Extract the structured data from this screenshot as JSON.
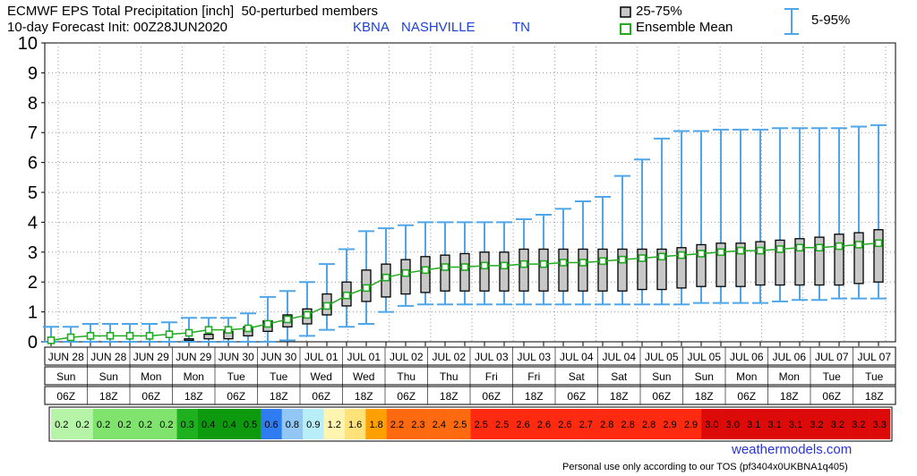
{
  "header": {
    "title_line1": "ECMWF EPS Total Precipitation [inch]  50-perturbed members",
    "title_line2": "10-day Forecast Init: 00Z28JUN2020",
    "station_code": "KBNA",
    "station_name": "NASHVILLE",
    "station_state": "TN"
  },
  "legend": {
    "box_label": "25-75%",
    "mean_label": "Ensemble Mean",
    "whisker_label": "5-95%"
  },
  "colors": {
    "box_fill": "#c8c8c8",
    "whisker": "#4fa6e8",
    "mean_line": "#22aa22",
    "mean_marker": "#ffffff"
  },
  "footer": {
    "site": "weathermodels.com",
    "note": "Personal use only according to our TOS (pf3404x0UKBNA1q405)"
  },
  "chart_data": {
    "type": "box",
    "ylim": [
      0,
      10
    ],
    "yticks": [
      "0",
      "1",
      "2",
      "3",
      "4",
      "5",
      "6",
      "7",
      "8",
      "9",
      "10"
    ],
    "date_labels": [
      "JUN 28",
      "JUN 28",
      "JUN 29",
      "JUN 29",
      "JUN 30",
      "JUN 30",
      "JUL 01",
      "JUL 01",
      "JUL 02",
      "JUL 02",
      "JUL 03",
      "JUL 03",
      "JUL 04",
      "JUL 04",
      "JUL 05",
      "JUL 05",
      "JUL 06",
      "JUL 06",
      "JUL 07",
      "JUL 07"
    ],
    "day_labels": [
      "Sun",
      "Sun",
      "Mon",
      "Mon",
      "Tue",
      "Tue",
      "Wed",
      "Wed",
      "Thu",
      "Thu",
      "Fri",
      "Fri",
      "Sat",
      "Sat",
      "Sun",
      "Sun",
      "Mon",
      "Mon",
      "Tue",
      "Tue"
    ],
    "hour_labels": [
      "06Z",
      "18Z",
      "06Z",
      "18Z",
      "06Z",
      "18Z",
      "06Z",
      "18Z",
      "06Z",
      "18Z",
      "06Z",
      "18Z",
      "06Z",
      "18Z",
      "06Z",
      "18Z",
      "06Z",
      "18Z",
      "06Z",
      "18Z"
    ],
    "mean": [
      0.05,
      0.15,
      0.2,
      0.2,
      0.2,
      0.2,
      0.25,
      0.3,
      0.4,
      0.4,
      0.45,
      0.6,
      0.75,
      0.9,
      1.2,
      1.55,
      1.8,
      2.15,
      2.3,
      2.4,
      2.5,
      2.5,
      2.55,
      2.55,
      2.6,
      2.6,
      2.65,
      2.65,
      2.7,
      2.75,
      2.8,
      2.85,
      2.9,
      2.95,
      3.0,
      3.05,
      3.05,
      3.1,
      3.15,
      3.15,
      3.2,
      3.25,
      3.3
    ],
    "q25": [
      0,
      0,
      0,
      0,
      0,
      0,
      0,
      0.05,
      0.1,
      0.1,
      0.2,
      0.35,
      0.5,
      0.6,
      0.9,
      1.2,
      1.35,
      1.5,
      1.6,
      1.65,
      1.7,
      1.7,
      1.7,
      1.7,
      1.7,
      1.7,
      1.7,
      1.7,
      1.7,
      1.7,
      1.75,
      1.75,
      1.8,
      1.85,
      1.85,
      1.85,
      1.9,
      1.9,
      1.9,
      1.9,
      1.9,
      1.95,
      2.0
    ],
    "q75": [
      0,
      0,
      0,
      0,
      0,
      0,
      0,
      0.1,
      0.25,
      0.35,
      0.5,
      0.7,
      0.9,
      1.1,
      1.6,
      2.0,
      2.4,
      2.6,
      2.75,
      2.85,
      2.9,
      2.95,
      3.0,
      3.0,
      3.1,
      3.1,
      3.1,
      3.1,
      3.1,
      3.1,
      3.1,
      3.1,
      3.15,
      3.25,
      3.3,
      3.3,
      3.35,
      3.4,
      3.45,
      3.5,
      3.6,
      3.65,
      3.75
    ],
    "p05": [
      0,
      0,
      0,
      0,
      0,
      0,
      0,
      0,
      0,
      0,
      0,
      0,
      0.05,
      0.2,
      0.4,
      0.5,
      0.6,
      1.0,
      1.2,
      1.25,
      1.25,
      1.25,
      1.25,
      1.25,
      1.25,
      1.25,
      1.25,
      1.25,
      1.25,
      1.25,
      1.25,
      1.25,
      1.25,
      1.3,
      1.3,
      1.3,
      1.3,
      1.35,
      1.4,
      1.4,
      1.45,
      1.45,
      1.45
    ],
    "p95": [
      0.5,
      0.5,
      0.6,
      0.6,
      0.6,
      0.6,
      0.65,
      0.8,
      0.8,
      0.8,
      0.95,
      1.5,
      1.7,
      2.0,
      2.6,
      3.1,
      3.7,
      3.8,
      3.9,
      4.0,
      4.0,
      4.0,
      4.0,
      4.0,
      4.1,
      4.25,
      4.45,
      4.7,
      4.85,
      5.55,
      6.1,
      6.8,
      7.05,
      7.05,
      7.1,
      7.1,
      7.1,
      7.15,
      7.15,
      7.15,
      7.15,
      7.2,
      7.25
    ],
    "table_values": [
      "0.2",
      "0.2",
      "0.2",
      "0.2",
      "0.2",
      "0.2",
      "0.3",
      "0.4",
      "0.4",
      "0.5",
      "0.6",
      "0.8",
      "0.9",
      "1.2",
      "1.6",
      "1.8",
      "2.2",
      "2.3",
      "2.4",
      "2.5",
      "2.5",
      "2.5",
      "2.6",
      "2.6",
      "2.6",
      "2.7",
      "2.8",
      "2.8",
      "2.8",
      "2.9",
      "2.9",
      "3.0",
      "3.0",
      "3.1",
      "3.1",
      "3.1",
      "3.2",
      "3.2",
      "3.2",
      "3.3"
    ],
    "table_colors": [
      "#b6f5a8",
      "#b6f5a8",
      "#7fe36e",
      "#7fe36e",
      "#7fe36e",
      "#7fe36e",
      "#1fb01f",
      "#0e9a0e",
      "#0e9a0e",
      "#0e9a0e",
      "#2f7cf0",
      "#91c6f5",
      "#b8eef8",
      "#fff4b0",
      "#ffe27a",
      "#ffa000",
      "#ff6a10",
      "#ff6a10",
      "#ff6a10",
      "#ff6a10",
      "#ff2a10",
      "#ff2a10",
      "#ff2a10",
      "#ff2a10",
      "#ff2a10",
      "#ff2a10",
      "#ff2a10",
      "#ff2a10",
      "#ff2a10",
      "#ff2a10",
      "#ff2a10",
      "#dd0a0a",
      "#dd0a0a",
      "#dd0a0a",
      "#dd0a0a",
      "#dd0a0a",
      "#dd0a0a",
      "#dd0a0a",
      "#dd0a0a",
      "#dd0a0a"
    ]
  }
}
